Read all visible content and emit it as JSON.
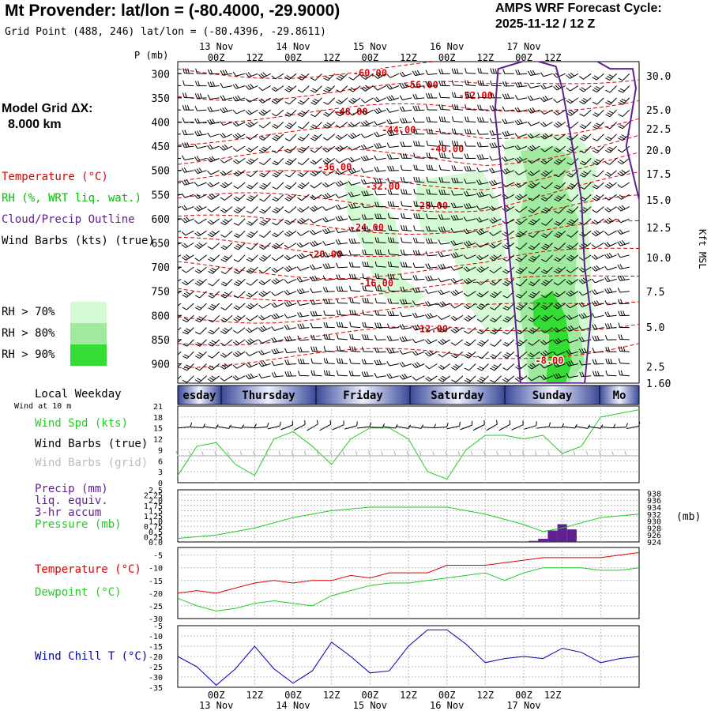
{
  "header": {
    "title": "Mt Provender:  lat/lon = (-80.4000, -29.9000)",
    "grid_point": "Grid Point (488, 246) lat/lon = (-80.4396, -29.8611)",
    "cycle_label": "AMPS WRF Forecast Cycle:",
    "cycle_value": "2025-11-12 / 12  Z"
  },
  "model_grid": {
    "line1": "Model Grid ΔX:",
    "line2": "8.000 km"
  },
  "legend": {
    "temperature": "Temperature (°C)",
    "rh": "RH (%, WRT liq. wat.)",
    "cloud": "Cloud/Precip Outline",
    "wind_barbs": "Wind Barbs (kts) (true)",
    "rh70": "RH > 70%",
    "rh80": "RH > 80%",
    "rh90": "RH > 90%"
  },
  "colors": {
    "temperature": "#e00000",
    "rh_text": "#00c000",
    "cloud": "#602090",
    "rh70": "#d4fad4",
    "rh80": "#9fea9f",
    "rh90": "#33dd33",
    "wind_speed": "#22cc22",
    "wind_chill": "#0000bb",
    "precip": "#602090",
    "grid_barbs": "#aaaaaa"
  },
  "time_axis": {
    "top_ticks": [
      "00Z",
      "12Z",
      "00Z",
      "12Z",
      "00Z",
      "12Z",
      "00Z",
      "12Z",
      "00Z",
      "12Z"
    ],
    "top_dates": [
      "13 Nov",
      "14 Nov",
      "15 Nov",
      "16 Nov",
      "17 Nov"
    ],
    "bottom_ticks": [
      "00Z",
      "12Z",
      "00Z",
      "12Z",
      "00Z",
      "12Z",
      "00Z",
      "12Z",
      "00Z",
      "12Z"
    ],
    "bottom_dates": [
      "13 Nov",
      "14 Nov",
      "15 Nov",
      "16 Nov",
      "17 Nov"
    ]
  },
  "weekday_bar": {
    "label": "Local Weekday",
    "days": [
      "esday",
      "Thursday",
      "Friday",
      "Saturday",
      "Sunday",
      "Mo"
    ]
  },
  "wind_panel": {
    "subtitle": "Wind at 10 m",
    "label_speed": "Wind Spd (kts)",
    "label_barbs_true": "Wind Barbs (true)",
    "label_barbs_grid": "Wind Barbs (grid)"
  },
  "precip_panel": {
    "line1": "Precip (mm)",
    "line2": "liq. equiv.",
    "line3": "3-hr accum",
    "line4": "Pressure (mb)",
    "unit_right": "(mb)"
  },
  "temp_panel": {
    "label_temp": "Temperature (°C)",
    "label_dew": "Dewpoint (°C)"
  },
  "chill_panel": {
    "label": "Wind Chill T (°C)"
  },
  "chart_data": [
    {
      "type": "heatmap",
      "name": "time-height cross section",
      "ylabel_left": "P (mb)",
      "ylabel_right": "Kft MSL",
      "pressure_ticks": [
        300,
        350,
        400,
        450,
        500,
        550,
        600,
        650,
        700,
        750,
        800,
        850,
        900
      ],
      "height_ticks": [
        "30.0",
        "25.0",
        "22.5",
        "20.0",
        "17.5",
        "15.0",
        "12.5",
        "10.0",
        "7.5",
        "5.0",
        "2.5",
        "1.60"
      ],
      "temperature_labels": [
        "-60.00",
        "-56.00",
        "-52.00",
        "-48.00",
        "-44.00",
        "-40.00",
        "-36.00",
        "-32.00",
        "-28.00",
        "-24.00",
        "-20.00",
        "-16.00",
        "-12.00",
        "-8.00"
      ],
      "temperature_isotherms_c": [
        -60,
        -56,
        -52,
        -48,
        -44,
        -40,
        -36,
        -32,
        -28,
        -24,
        -20,
        -16,
        -12,
        -8
      ]
    },
    {
      "type": "line",
      "name": "wind speed 10 m",
      "y_ticks": [
        0,
        3,
        6,
        9,
        12,
        15,
        18,
        21
      ],
      "ylim": [
        0,
        21
      ],
      "x_hours": [
        0,
        6,
        12,
        18,
        24,
        30,
        36,
        42,
        48,
        54,
        60,
        66,
        72,
        78,
        84,
        90,
        96,
        102,
        108,
        114,
        120,
        126,
        132,
        138,
        144
      ],
      "series": [
        {
          "values": [
            2,
            10,
            11,
            5,
            2,
            12,
            14,
            10,
            5,
            12,
            15,
            15,
            12,
            3,
            1,
            9,
            13,
            13,
            12,
            13,
            8,
            10,
            18,
            19,
            20
          ]
        }
      ]
    },
    {
      "type": "bar",
      "name": "precip and pressure",
      "y_ticks_left": [
        0.0,
        0.25,
        0.5,
        0.75,
        1.0,
        1.25,
        1.5,
        1.75,
        2.0,
        2.25,
        2.5
      ],
      "y_ticks_right": [
        924,
        926,
        928,
        930,
        932,
        934,
        936,
        938
      ],
      "precip_bars": [
        {
          "hour": 111,
          "value": 0.05
        },
        {
          "hour": 114,
          "value": 0.15
        },
        {
          "hour": 117,
          "value": 0.55
        },
        {
          "hour": 120,
          "value": 0.85
        },
        {
          "hour": 123,
          "value": 0.6
        }
      ],
      "pressure_mb": [
        {
          "hour": 0,
          "value": 925
        },
        {
          "hour": 12,
          "value": 926
        },
        {
          "hour": 24,
          "value": 928
        },
        {
          "hour": 36,
          "value": 931
        },
        {
          "hour": 48,
          "value": 933
        },
        {
          "hour": 60,
          "value": 934
        },
        {
          "hour": 72,
          "value": 934
        },
        {
          "hour": 84,
          "value": 934
        },
        {
          "hour": 96,
          "value": 932
        },
        {
          "hour": 108,
          "value": 929
        },
        {
          "hour": 114,
          "value": 927
        },
        {
          "hour": 120,
          "value": 928
        },
        {
          "hour": 132,
          "value": 931
        },
        {
          "hour": 144,
          "value": 932
        }
      ]
    },
    {
      "type": "line",
      "name": "temperature dewpoint",
      "y_ticks": [
        -5,
        -10,
        -15,
        -20,
        -25,
        -30
      ],
      "ylim": [
        -30,
        -2
      ],
      "x_hours": [
        0,
        6,
        12,
        18,
        24,
        30,
        36,
        42,
        48,
        54,
        60,
        66,
        72,
        78,
        84,
        90,
        96,
        102,
        108,
        114,
        120,
        126,
        132,
        138,
        144
      ],
      "series": [
        {
          "values": [
            -20,
            -19,
            -20,
            -18,
            -16,
            -15,
            -16,
            -15,
            -15,
            -13,
            -14,
            -12,
            -12,
            -12,
            -9,
            -9,
            -9,
            -8,
            -7,
            -6,
            -6,
            -6,
            -6,
            -5,
            -4
          ]
        },
        {
          "values": [
            -22,
            -25,
            -27,
            -26,
            -24,
            -23,
            -24,
            -25,
            -21,
            -19,
            -17,
            -16,
            -16,
            -15,
            -14,
            -13,
            -12,
            -15,
            -12,
            -10,
            -10,
            -10,
            -11,
            -11,
            -10
          ]
        }
      ]
    },
    {
      "type": "line",
      "name": "wind chill",
      "y_ticks": [
        -5,
        -10,
        -15,
        -20,
        -25,
        -30,
        -35
      ],
      "ylim": [
        -35,
        -5
      ],
      "x_hours": [
        0,
        6,
        12,
        18,
        24,
        30,
        36,
        42,
        48,
        54,
        60,
        66,
        72,
        78,
        84,
        90,
        96,
        102,
        108,
        114,
        120,
        126,
        132,
        138,
        144
      ],
      "series": [
        {
          "values": [
            -20,
            -25,
            -34,
            -26,
            -15,
            -26,
            -33,
            -27,
            -13,
            -20,
            -28,
            -27,
            -15,
            -7,
            -7,
            -14,
            -23,
            -21,
            -20,
            -21,
            -16,
            -18,
            -23,
            -21,
            -20
          ]
        }
      ]
    }
  ]
}
